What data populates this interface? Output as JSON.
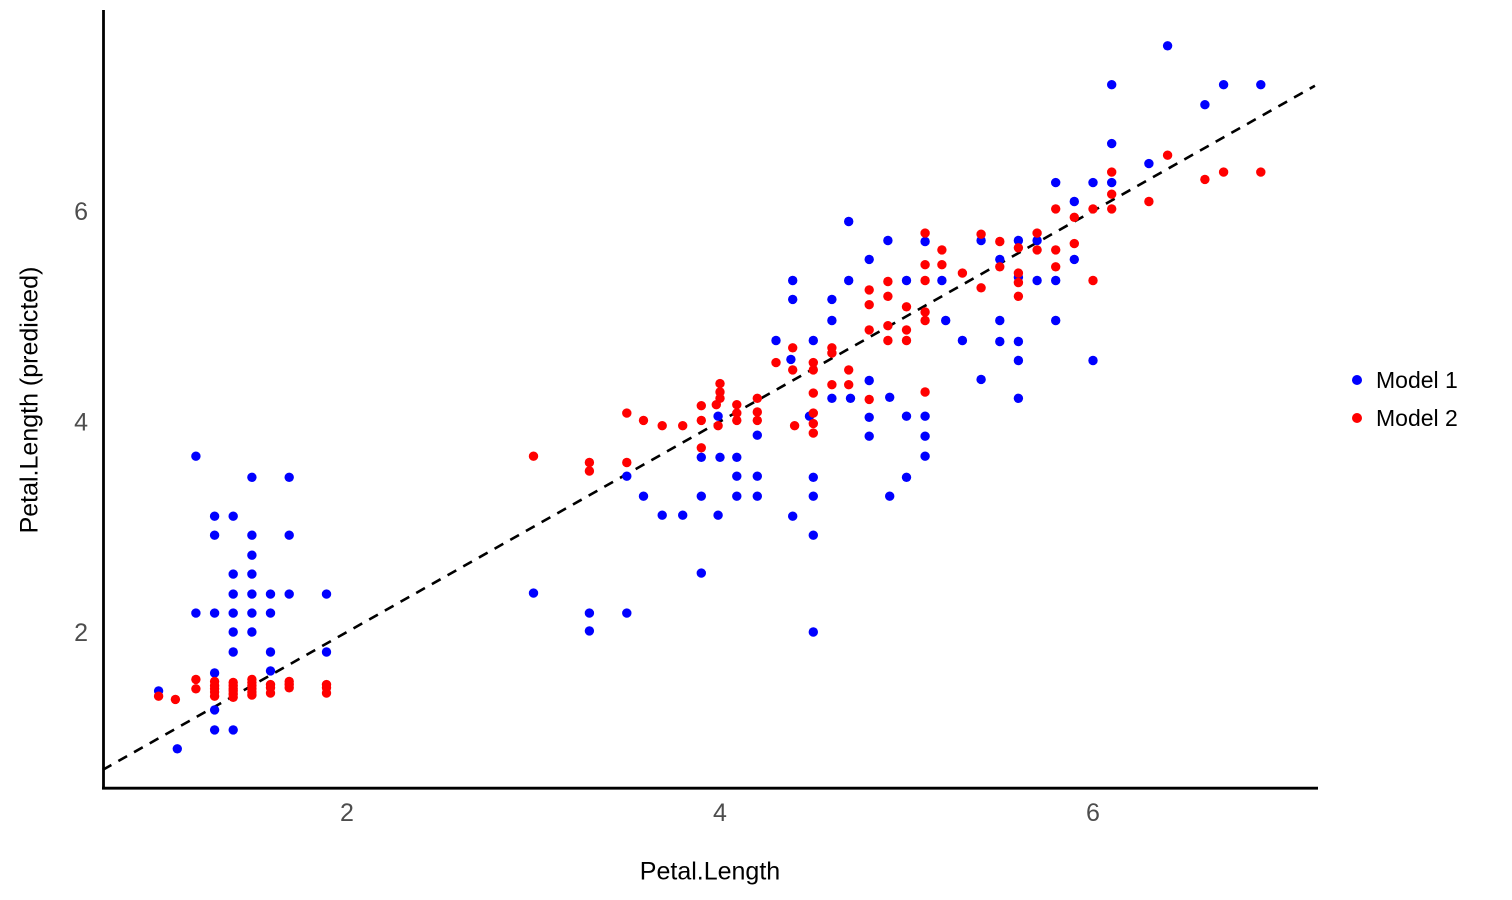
{
  "chart_data": {
    "type": "scatter",
    "title": "",
    "xlabel": "Petal.Length",
    "ylabel": "Petal.Length (predicted)",
    "xlim": [
      0.55,
      7.2
    ],
    "ylim": [
      0.55,
      7.9
    ],
    "x_ticks": [
      2,
      4,
      6
    ],
    "y_ticks": [
      2,
      4,
      6
    ],
    "x_tick_labels": [
      "2",
      "4",
      "6"
    ],
    "y_tick_labels": [
      "2",
      "4",
      "6"
    ],
    "grid": false,
    "legend_position": "right",
    "tick_label_color": "#4d4d4d",
    "axis_color": "#000000",
    "reference_line": {
      "type": "identity y=x",
      "style": "dashed",
      "color": "#000000",
      "x_start": 0.69,
      "x_end": 7.19
    },
    "series": [
      {
        "name": "Model 1",
        "color": "#0000FF",
        "points": [
          [
            0.99,
            1.44
          ],
          [
            1.09,
            0.89
          ],
          [
            1.19,
            3.67
          ],
          [
            1.19,
            2.18
          ],
          [
            1.29,
            3.1
          ],
          [
            1.29,
            2.92
          ],
          [
            1.29,
            2.18
          ],
          [
            1.29,
            1.61
          ],
          [
            1.29,
            1.26
          ],
          [
            1.29,
            1.07
          ],
          [
            1.39,
            3.1
          ],
          [
            1.39,
            2.55
          ],
          [
            1.39,
            2.36
          ],
          [
            1.39,
            2.18
          ],
          [
            1.39,
            2.0
          ],
          [
            1.39,
            1.81
          ],
          [
            1.39,
            1.07
          ],
          [
            1.49,
            3.47
          ],
          [
            1.49,
            2.92
          ],
          [
            1.49,
            2.73
          ],
          [
            1.49,
            2.55
          ],
          [
            1.49,
            2.36
          ],
          [
            1.49,
            2.18
          ],
          [
            1.49,
            2.0
          ],
          [
            1.59,
            2.36
          ],
          [
            1.59,
            2.18
          ],
          [
            1.59,
            1.81
          ],
          [
            1.59,
            1.63
          ],
          [
            1.69,
            3.47
          ],
          [
            1.69,
            2.92
          ],
          [
            1.69,
            2.36
          ],
          [
            1.89,
            2.36
          ],
          [
            1.89,
            1.81
          ],
          [
            3.0,
            2.37
          ],
          [
            3.3,
            2.18
          ],
          [
            3.3,
            2.01
          ],
          [
            3.5,
            3.48
          ],
          [
            3.5,
            2.18
          ],
          [
            3.59,
            3.29
          ],
          [
            3.69,
            3.11
          ],
          [
            3.8,
            3.11
          ],
          [
            3.9,
            3.66
          ],
          [
            3.9,
            3.29
          ],
          [
            3.9,
            2.56
          ],
          [
            3.99,
            4.05
          ],
          [
            3.99,
            3.11
          ],
          [
            4.0,
            3.66
          ],
          [
            4.09,
            3.66
          ],
          [
            4.09,
            3.48
          ],
          [
            4.09,
            3.29
          ],
          [
            4.2,
            3.87
          ],
          [
            4.2,
            3.48
          ],
          [
            4.2,
            3.29
          ],
          [
            4.3,
            4.77
          ],
          [
            4.38,
            4.59
          ],
          [
            4.39,
            5.34
          ],
          [
            4.39,
            5.16
          ],
          [
            4.39,
            3.1
          ],
          [
            4.48,
            4.05
          ],
          [
            4.5,
            4.77
          ],
          [
            4.5,
            3.47
          ],
          [
            4.5,
            3.29
          ],
          [
            4.5,
            2.92
          ],
          [
            4.5,
            2.0
          ],
          [
            4.6,
            5.16
          ],
          [
            4.6,
            4.96
          ],
          [
            4.6,
            4.22
          ],
          [
            4.69,
            5.9
          ],
          [
            4.69,
            5.34
          ],
          [
            4.7,
            4.22
          ],
          [
            4.8,
            5.54
          ],
          [
            4.8,
            4.39
          ],
          [
            4.8,
            4.04
          ],
          [
            4.8,
            3.86
          ],
          [
            4.9,
            5.72
          ],
          [
            4.91,
            4.23
          ],
          [
            4.91,
            3.29
          ],
          [
            5.0,
            5.34
          ],
          [
            5.0,
            4.05
          ],
          [
            5.0,
            3.47
          ],
          [
            5.1,
            5.71
          ],
          [
            5.1,
            4.05
          ],
          [
            5.1,
            3.86
          ],
          [
            5.1,
            3.67
          ],
          [
            5.19,
            5.34
          ],
          [
            5.21,
            4.96
          ],
          [
            5.3,
            4.77
          ],
          [
            5.4,
            5.72
          ],
          [
            5.4,
            4.4
          ],
          [
            5.5,
            5.54
          ],
          [
            5.5,
            4.96
          ],
          [
            5.5,
            4.76
          ],
          [
            5.6,
            5.72
          ],
          [
            5.6,
            5.37
          ],
          [
            5.6,
            4.76
          ],
          [
            5.6,
            4.58
          ],
          [
            5.6,
            4.22
          ],
          [
            5.7,
            5.72
          ],
          [
            5.7,
            5.34
          ],
          [
            5.8,
            6.27
          ],
          [
            5.8,
            5.34
          ],
          [
            5.8,
            4.96
          ],
          [
            5.9,
            6.09
          ],
          [
            5.9,
            5.54
          ],
          [
            6.0,
            6.27
          ],
          [
            6.0,
            4.58
          ],
          [
            6.1,
            7.2
          ],
          [
            6.1,
            6.64
          ],
          [
            6.1,
            6.27
          ],
          [
            6.3,
            6.45
          ],
          [
            6.4,
            7.57
          ],
          [
            6.6,
            7.01
          ],
          [
            6.7,
            7.2
          ],
          [
            6.9,
            7.2
          ]
        ]
      },
      {
        "name": "Model 2",
        "color": "#FF0000",
        "points": [
          [
            0.99,
            1.39
          ],
          [
            1.08,
            1.36
          ],
          [
            1.19,
            1.55
          ],
          [
            1.19,
            1.46
          ],
          [
            1.29,
            1.53
          ],
          [
            1.29,
            1.49
          ],
          [
            1.29,
            1.46
          ],
          [
            1.29,
            1.43
          ],
          [
            1.29,
            1.39
          ],
          [
            1.39,
            1.52
          ],
          [
            1.39,
            1.49
          ],
          [
            1.39,
            1.46
          ],
          [
            1.39,
            1.44
          ],
          [
            1.39,
            1.41
          ],
          [
            1.39,
            1.38
          ],
          [
            1.49,
            1.55
          ],
          [
            1.49,
            1.52
          ],
          [
            1.49,
            1.49
          ],
          [
            1.49,
            1.46
          ],
          [
            1.49,
            1.43
          ],
          [
            1.49,
            1.4
          ],
          [
            1.59,
            1.5
          ],
          [
            1.59,
            1.47
          ],
          [
            1.59,
            1.42
          ],
          [
            1.69,
            1.53
          ],
          [
            1.69,
            1.5
          ],
          [
            1.69,
            1.47
          ],
          [
            1.89,
            1.5
          ],
          [
            1.89,
            1.47
          ],
          [
            1.89,
            1.42
          ],
          [
            3.0,
            3.67
          ],
          [
            3.3,
            3.61
          ],
          [
            3.3,
            3.53
          ],
          [
            3.5,
            4.08
          ],
          [
            3.5,
            3.61
          ],
          [
            3.59,
            4.01
          ],
          [
            3.69,
            3.96
          ],
          [
            3.8,
            3.96
          ],
          [
            3.9,
            4.15
          ],
          [
            3.9,
            4.01
          ],
          [
            3.9,
            3.75
          ],
          [
            3.98,
            4.16
          ],
          [
            3.99,
            3.96
          ],
          [
            4.0,
            4.36
          ],
          [
            4.0,
            4.28
          ],
          [
            4.0,
            4.22
          ],
          [
            4.09,
            4.16
          ],
          [
            4.09,
            4.08
          ],
          [
            4.09,
            4.01
          ],
          [
            4.2,
            4.22
          ],
          [
            4.2,
            4.09
          ],
          [
            4.2,
            4.01
          ],
          [
            4.3,
            4.56
          ],
          [
            4.39,
            4.7
          ],
          [
            4.39,
            4.49
          ],
          [
            4.4,
            3.96
          ],
          [
            4.5,
            4.56
          ],
          [
            4.5,
            4.49
          ],
          [
            4.5,
            4.27
          ],
          [
            4.5,
            4.08
          ],
          [
            4.5,
            3.98
          ],
          [
            4.5,
            3.89
          ],
          [
            4.6,
            4.7
          ],
          [
            4.6,
            4.65
          ],
          [
            4.6,
            4.35
          ],
          [
            4.69,
            4.49
          ],
          [
            4.69,
            4.35
          ],
          [
            4.8,
            5.25
          ],
          [
            4.8,
            5.11
          ],
          [
            4.8,
            4.87
          ],
          [
            4.8,
            4.21
          ],
          [
            4.9,
            5.33
          ],
          [
            4.9,
            5.19
          ],
          [
            4.9,
            4.91
          ],
          [
            4.9,
            4.77
          ],
          [
            5.0,
            5.09
          ],
          [
            5.0,
            4.87
          ],
          [
            5.0,
            4.77
          ],
          [
            5.1,
            5.79
          ],
          [
            5.1,
            5.49
          ],
          [
            5.1,
            5.34
          ],
          [
            5.1,
            5.04
          ],
          [
            5.1,
            4.96
          ],
          [
            5.1,
            4.28
          ],
          [
            5.19,
            5.63
          ],
          [
            5.19,
            5.49
          ],
          [
            5.3,
            5.41
          ],
          [
            5.4,
            5.78
          ],
          [
            5.4,
            5.27
          ],
          [
            5.5,
            5.71
          ],
          [
            5.5,
            5.47
          ],
          [
            5.6,
            5.65
          ],
          [
            5.6,
            5.41
          ],
          [
            5.6,
            5.32
          ],
          [
            5.6,
            5.19
          ],
          [
            5.7,
            5.79
          ],
          [
            5.7,
            5.63
          ],
          [
            5.8,
            6.02
          ],
          [
            5.8,
            5.63
          ],
          [
            5.8,
            5.47
          ],
          [
            5.9,
            5.94
          ],
          [
            5.9,
            5.69
          ],
          [
            6.0,
            6.02
          ],
          [
            6.0,
            5.34
          ],
          [
            6.1,
            6.37
          ],
          [
            6.1,
            6.16
          ],
          [
            6.1,
            6.02
          ],
          [
            6.3,
            6.09
          ],
          [
            6.4,
            6.53
          ],
          [
            6.6,
            6.3
          ],
          [
            6.7,
            6.37
          ],
          [
            6.9,
            6.37
          ]
        ]
      }
    ]
  }
}
